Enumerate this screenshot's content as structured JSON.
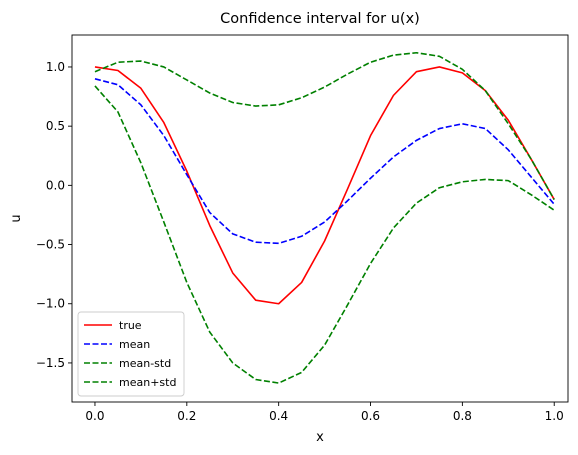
{
  "chart_data": {
    "type": "line",
    "title": "Confidence interval for u(x)",
    "xlabel": "x",
    "ylabel": "u",
    "xlim": [
      -0.05,
      1.03
    ],
    "ylim": [
      -1.83,
      1.27
    ],
    "xticks": [
      0.0,
      0.2,
      0.4,
      0.6,
      0.8,
      1.0
    ],
    "xtick_labels": [
      "0.0",
      "0.2",
      "0.4",
      "0.6",
      "0.8",
      "1.0"
    ],
    "yticks": [
      1.0,
      0.5,
      0.0,
      -0.5,
      -1.0,
      -1.5
    ],
    "ytick_labels": [
      "1.0",
      "0.5",
      "0.0",
      "−0.5",
      "−1.0",
      "−1.5"
    ],
    "legend_position": "lower-left",
    "x": [
      0.0,
      0.05,
      0.1,
      0.15,
      0.2,
      0.25,
      0.3,
      0.35,
      0.4,
      0.45,
      0.5,
      0.55,
      0.6,
      0.65,
      0.7,
      0.75,
      0.8,
      0.85,
      0.9,
      0.95,
      1.0
    ],
    "series": [
      {
        "name": "true",
        "color": "#ff0000",
        "dash": "solid",
        "values": [
          1.0,
          0.97,
          0.82,
          0.53,
          0.12,
          -0.34,
          -0.74,
          -0.97,
          -1.0,
          -0.82,
          -0.47,
          -0.03,
          0.42,
          0.76,
          0.96,
          1.0,
          0.95,
          0.8,
          0.55,
          0.22,
          -0.12
        ]
      },
      {
        "name": "mean",
        "color": "#0000ff",
        "dash": "dashed",
        "values": [
          0.9,
          0.85,
          0.68,
          0.42,
          0.09,
          -0.23,
          -0.41,
          -0.48,
          -0.49,
          -0.43,
          -0.31,
          -0.13,
          0.06,
          0.24,
          0.38,
          0.48,
          0.52,
          0.48,
          0.3,
          0.07,
          -0.16
        ]
      },
      {
        "name": "mean-std",
        "color": "#008000",
        "dash": "dashed",
        "values": [
          0.84,
          0.62,
          0.19,
          -0.31,
          -0.82,
          -1.24,
          -1.5,
          -1.64,
          -1.67,
          -1.58,
          -1.35,
          -1.01,
          -0.66,
          -0.36,
          -0.15,
          -0.02,
          0.03,
          0.05,
          0.04,
          -0.08,
          -0.21
        ]
      },
      {
        "name": "mean+std",
        "color": "#008000",
        "dash": "dashed",
        "values": [
          0.96,
          1.04,
          1.05,
          1.0,
          0.89,
          0.78,
          0.7,
          0.67,
          0.68,
          0.74,
          0.83,
          0.94,
          1.04,
          1.1,
          1.12,
          1.09,
          0.98,
          0.8,
          0.52,
          0.22,
          -0.12
        ]
      }
    ]
  }
}
